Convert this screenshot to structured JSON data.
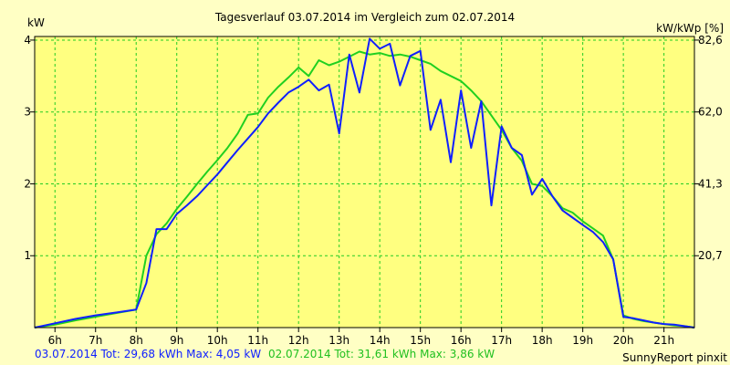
{
  "chart_data": {
    "type": "line",
    "title": "Tagesverlauf 03.07.2014 im Vergleich zum 02.07.2014",
    "y_left_label": "kW",
    "y_right_label": "kW/kWp [%]",
    "x_ticks": [
      "6h",
      "7h",
      "8h",
      "9h",
      "10h",
      "11h",
      "12h",
      "13h",
      "14h",
      "15h",
      "16h",
      "17h",
      "18h",
      "19h",
      "20h",
      "21h"
    ],
    "y_left_ticks": [
      "1",
      "2",
      "3",
      "4"
    ],
    "y_right_ticks": [
      "20,7",
      "41,3",
      "62,0",
      "82,6"
    ],
    "xlim": [
      5.5,
      21.75
    ],
    "ylim": [
      0,
      4.05
    ],
    "grid": true,
    "colors": {
      "background": "#FFFFC4",
      "plot_area": "#FFFF80",
      "grid": "#22CC22",
      "series_blue": "#1020FF",
      "series_green": "#20D020"
    },
    "series": [
      {
        "name": "03.07.2014",
        "color": "#1020FF",
        "x": [
          5.5,
          6.0,
          6.5,
          7.0,
          7.5,
          8.0,
          8.25,
          8.5,
          8.75,
          9.0,
          9.25,
          9.5,
          9.75,
          10.0,
          10.25,
          10.5,
          10.75,
          11.0,
          11.25,
          11.5,
          11.75,
          12.0,
          12.25,
          12.5,
          12.75,
          13.0,
          13.25,
          13.5,
          13.75,
          14.0,
          14.25,
          14.5,
          14.75,
          15.0,
          15.25,
          15.5,
          15.75,
          16.0,
          16.25,
          16.5,
          16.75,
          17.0,
          17.25,
          17.5,
          17.75,
          18.0,
          18.25,
          18.5,
          18.75,
          19.0,
          19.25,
          19.5,
          19.75,
          20.0,
          20.25,
          20.5,
          20.75,
          21.0,
          21.25,
          21.5,
          21.75
        ],
        "values": [
          0.0,
          0.06,
          0.12,
          0.17,
          0.21,
          0.25,
          0.62,
          1.37,
          1.37,
          1.58,
          1.7,
          1.83,
          1.98,
          2.13,
          2.3,
          2.47,
          2.63,
          2.79,
          2.98,
          3.13,
          3.27,
          3.35,
          3.45,
          3.3,
          3.38,
          2.7,
          3.8,
          3.27,
          4.02,
          3.88,
          3.95,
          3.37,
          3.78,
          3.85,
          2.75,
          3.17,
          2.3,
          3.3,
          2.5,
          3.15,
          1.7,
          2.8,
          2.5,
          2.4,
          1.85,
          2.07,
          1.83,
          1.63,
          1.53,
          1.43,
          1.33,
          1.19,
          0.95,
          0.15,
          0.13,
          0.1,
          0.07,
          0.05,
          0.04,
          0.02,
          0.0
        ]
      },
      {
        "name": "02.07.2014",
        "color": "#20D020",
        "x": [
          5.5,
          6.0,
          6.5,
          7.0,
          7.5,
          8.0,
          8.25,
          8.5,
          8.75,
          9.0,
          9.25,
          9.5,
          9.75,
          10.0,
          10.25,
          10.5,
          10.75,
          11.0,
          11.25,
          11.5,
          11.75,
          12.0,
          12.25,
          12.5,
          12.75,
          13.0,
          13.25,
          13.5,
          13.75,
          14.0,
          14.25,
          14.5,
          14.75,
          15.0,
          15.25,
          15.5,
          15.75,
          16.0,
          16.25,
          16.5,
          16.75,
          17.0,
          17.25,
          17.5,
          17.75,
          18.0,
          18.25,
          18.5,
          18.75,
          19.0,
          19.25,
          19.5,
          19.75,
          20.0,
          20.25,
          20.5,
          20.75,
          21.0,
          21.25,
          21.5,
          21.75
        ],
        "values": [
          0.0,
          0.04,
          0.1,
          0.15,
          0.2,
          0.25,
          1.0,
          1.3,
          1.45,
          1.65,
          1.82,
          2.0,
          2.17,
          2.33,
          2.5,
          2.7,
          2.96,
          2.98,
          3.2,
          3.35,
          3.48,
          3.62,
          3.5,
          3.72,
          3.65,
          3.7,
          3.77,
          3.84,
          3.8,
          3.82,
          3.78,
          3.8,
          3.77,
          3.72,
          3.67,
          3.57,
          3.5,
          3.43,
          3.3,
          3.15,
          2.95,
          2.75,
          2.5,
          2.32,
          2.0,
          1.97,
          1.83,
          1.66,
          1.6,
          1.48,
          1.38,
          1.28,
          0.95,
          0.17,
          0.12,
          0.09,
          0.07,
          0.05,
          0.03,
          0.02,
          0.0
        ]
      }
    ],
    "footer": {
      "blue_text": "03.07.2014 Tot: 29,68 kWh Max: 4,05 kW",
      "green_text": "02.07.2014 Tot: 31,61 kWh Max: 3,86 kW",
      "credit": "SunnyReport pinxit"
    }
  }
}
